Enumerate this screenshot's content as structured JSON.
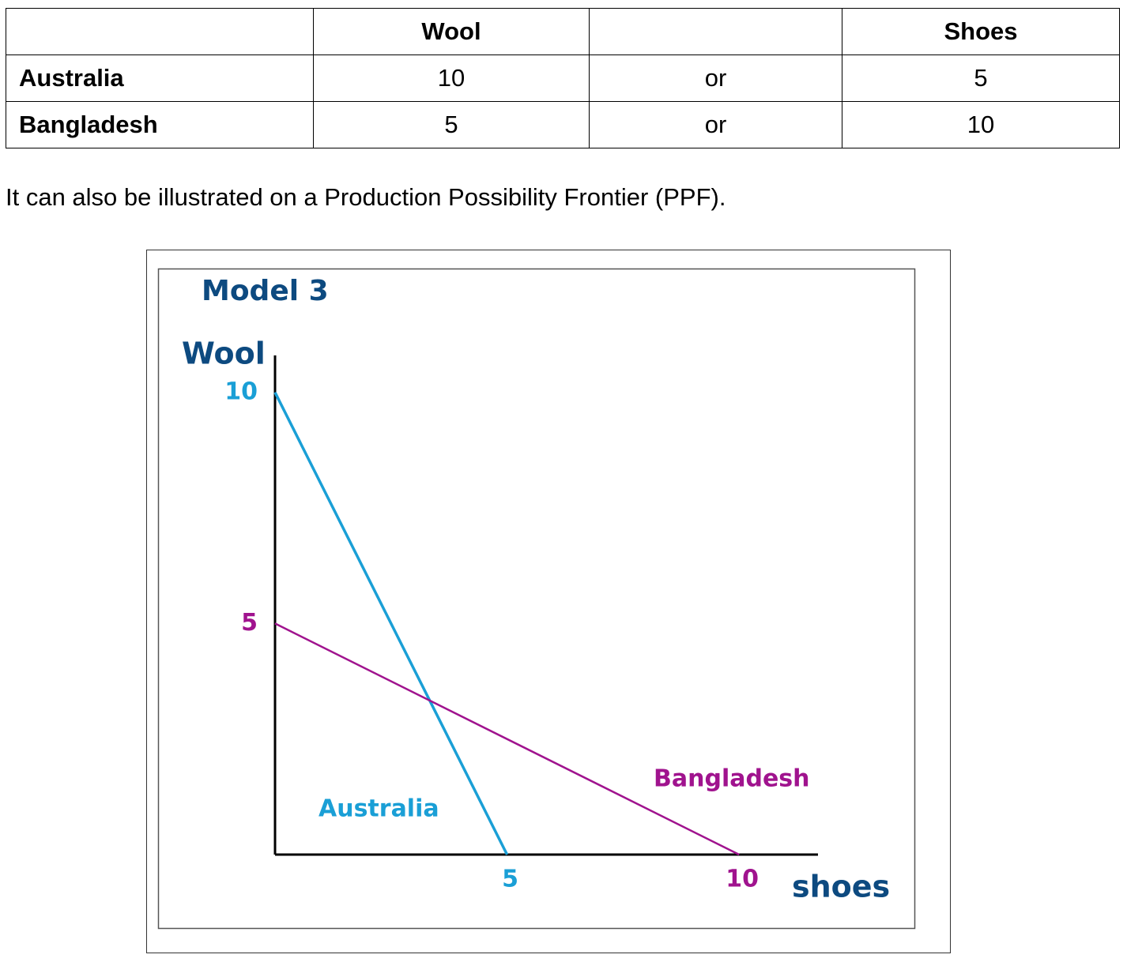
{
  "table": {
    "header": {
      "wool": "Wool",
      "shoes": "Shoes"
    },
    "rows": [
      [
        "Australia",
        10,
        "or",
        5
      ],
      [
        "Bangladesh",
        5,
        "or",
        10
      ]
    ]
  },
  "paragraph": "It can also be illustrated on a Production Possibility Frontier (PPF).",
  "chart_data": {
    "type": "line",
    "title": "Model 3",
    "y_label": "Wool",
    "x_label": "shoes",
    "xlim": [
      0,
      11.7
    ],
    "ylim": [
      0,
      10.8
    ],
    "xticks": [
      5,
      10
    ],
    "yticks": [
      5,
      10
    ],
    "series": [
      {
        "name": "Australia",
        "color": "#1a9fd6",
        "x": [
          0,
          5
        ],
        "values": [
          10,
          0
        ]
      },
      {
        "name": "Bangladesh",
        "color": "#a0138e",
        "x": [
          0,
          10
        ],
        "values": [
          5,
          0
        ]
      }
    ]
  }
}
